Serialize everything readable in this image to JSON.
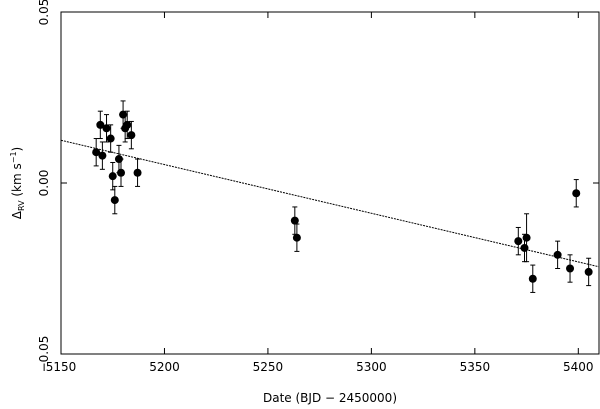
{
  "chart_data": {
    "type": "scatter",
    "xlabel": "Date (BJD − 2450000)",
    "ylabel_main": "Δ",
    "ylabel_sub": "RV",
    "ylabel_unit": " (km s",
    "ylabel_exp": "−1",
    "ylabel_close": ")",
    "xlim": [
      5150,
      5410
    ],
    "ylim": [
      -0.05,
      0.05
    ],
    "xticks": [
      5150,
      5200,
      5250,
      5300,
      5350,
      5400
    ],
    "xtick_labels": [
      "5150",
      "5200",
      "5250",
      "5300",
      "5350",
      "5400"
    ],
    "yticks": [
      -0.05,
      0.0,
      0.05
    ],
    "ytick_labels": [
      "−0.05",
      "0.00",
      "0.05"
    ],
    "points": [
      {
        "x": 5167,
        "y": 0.009,
        "err": 0.004
      },
      {
        "x": 5169,
        "y": 0.017,
        "err": 0.004
      },
      {
        "x": 5170,
        "y": 0.008,
        "err": 0.004
      },
      {
        "x": 5172,
        "y": 0.016,
        "err": 0.004
      },
      {
        "x": 5174,
        "y": 0.013,
        "err": 0.004
      },
      {
        "x": 5175,
        "y": 0.002,
        "err": 0.004
      },
      {
        "x": 5176,
        "y": -0.005,
        "err": 0.004
      },
      {
        "x": 5178,
        "y": 0.007,
        "err": 0.004
      },
      {
        "x": 5179,
        "y": 0.003,
        "err": 0.004
      },
      {
        "x": 5180,
        "y": 0.02,
        "err": 0.004
      },
      {
        "x": 5181,
        "y": 0.016,
        "err": 0.004
      },
      {
        "x": 5182,
        "y": 0.017,
        "err": 0.004
      },
      {
        "x": 5184,
        "y": 0.014,
        "err": 0.004
      },
      {
        "x": 5187,
        "y": 0.003,
        "err": 0.004
      },
      {
        "x": 5263,
        "y": -0.011,
        "err": 0.004
      },
      {
        "x": 5264,
        "y": -0.016,
        "err": 0.004
      },
      {
        "x": 5371,
        "y": -0.017,
        "err": 0.004
      },
      {
        "x": 5374,
        "y": -0.019,
        "err": 0.004
      },
      {
        "x": 5375,
        "y": -0.016,
        "err": 0.007
      },
      {
        "x": 5378,
        "y": -0.028,
        "err": 0.004
      },
      {
        "x": 5390,
        "y": -0.021,
        "err": 0.004
      },
      {
        "x": 5396,
        "y": -0.025,
        "err": 0.004
      },
      {
        "x": 5399,
        "y": -0.003,
        "err": 0.004
      },
      {
        "x": 5405,
        "y": -0.026,
        "err": 0.004
      }
    ],
    "fit_line": {
      "x": [
        5150,
        5410
      ],
      "y": [
        0.0125,
        -0.0245
      ]
    },
    "grid": false,
    "legend": "none"
  }
}
